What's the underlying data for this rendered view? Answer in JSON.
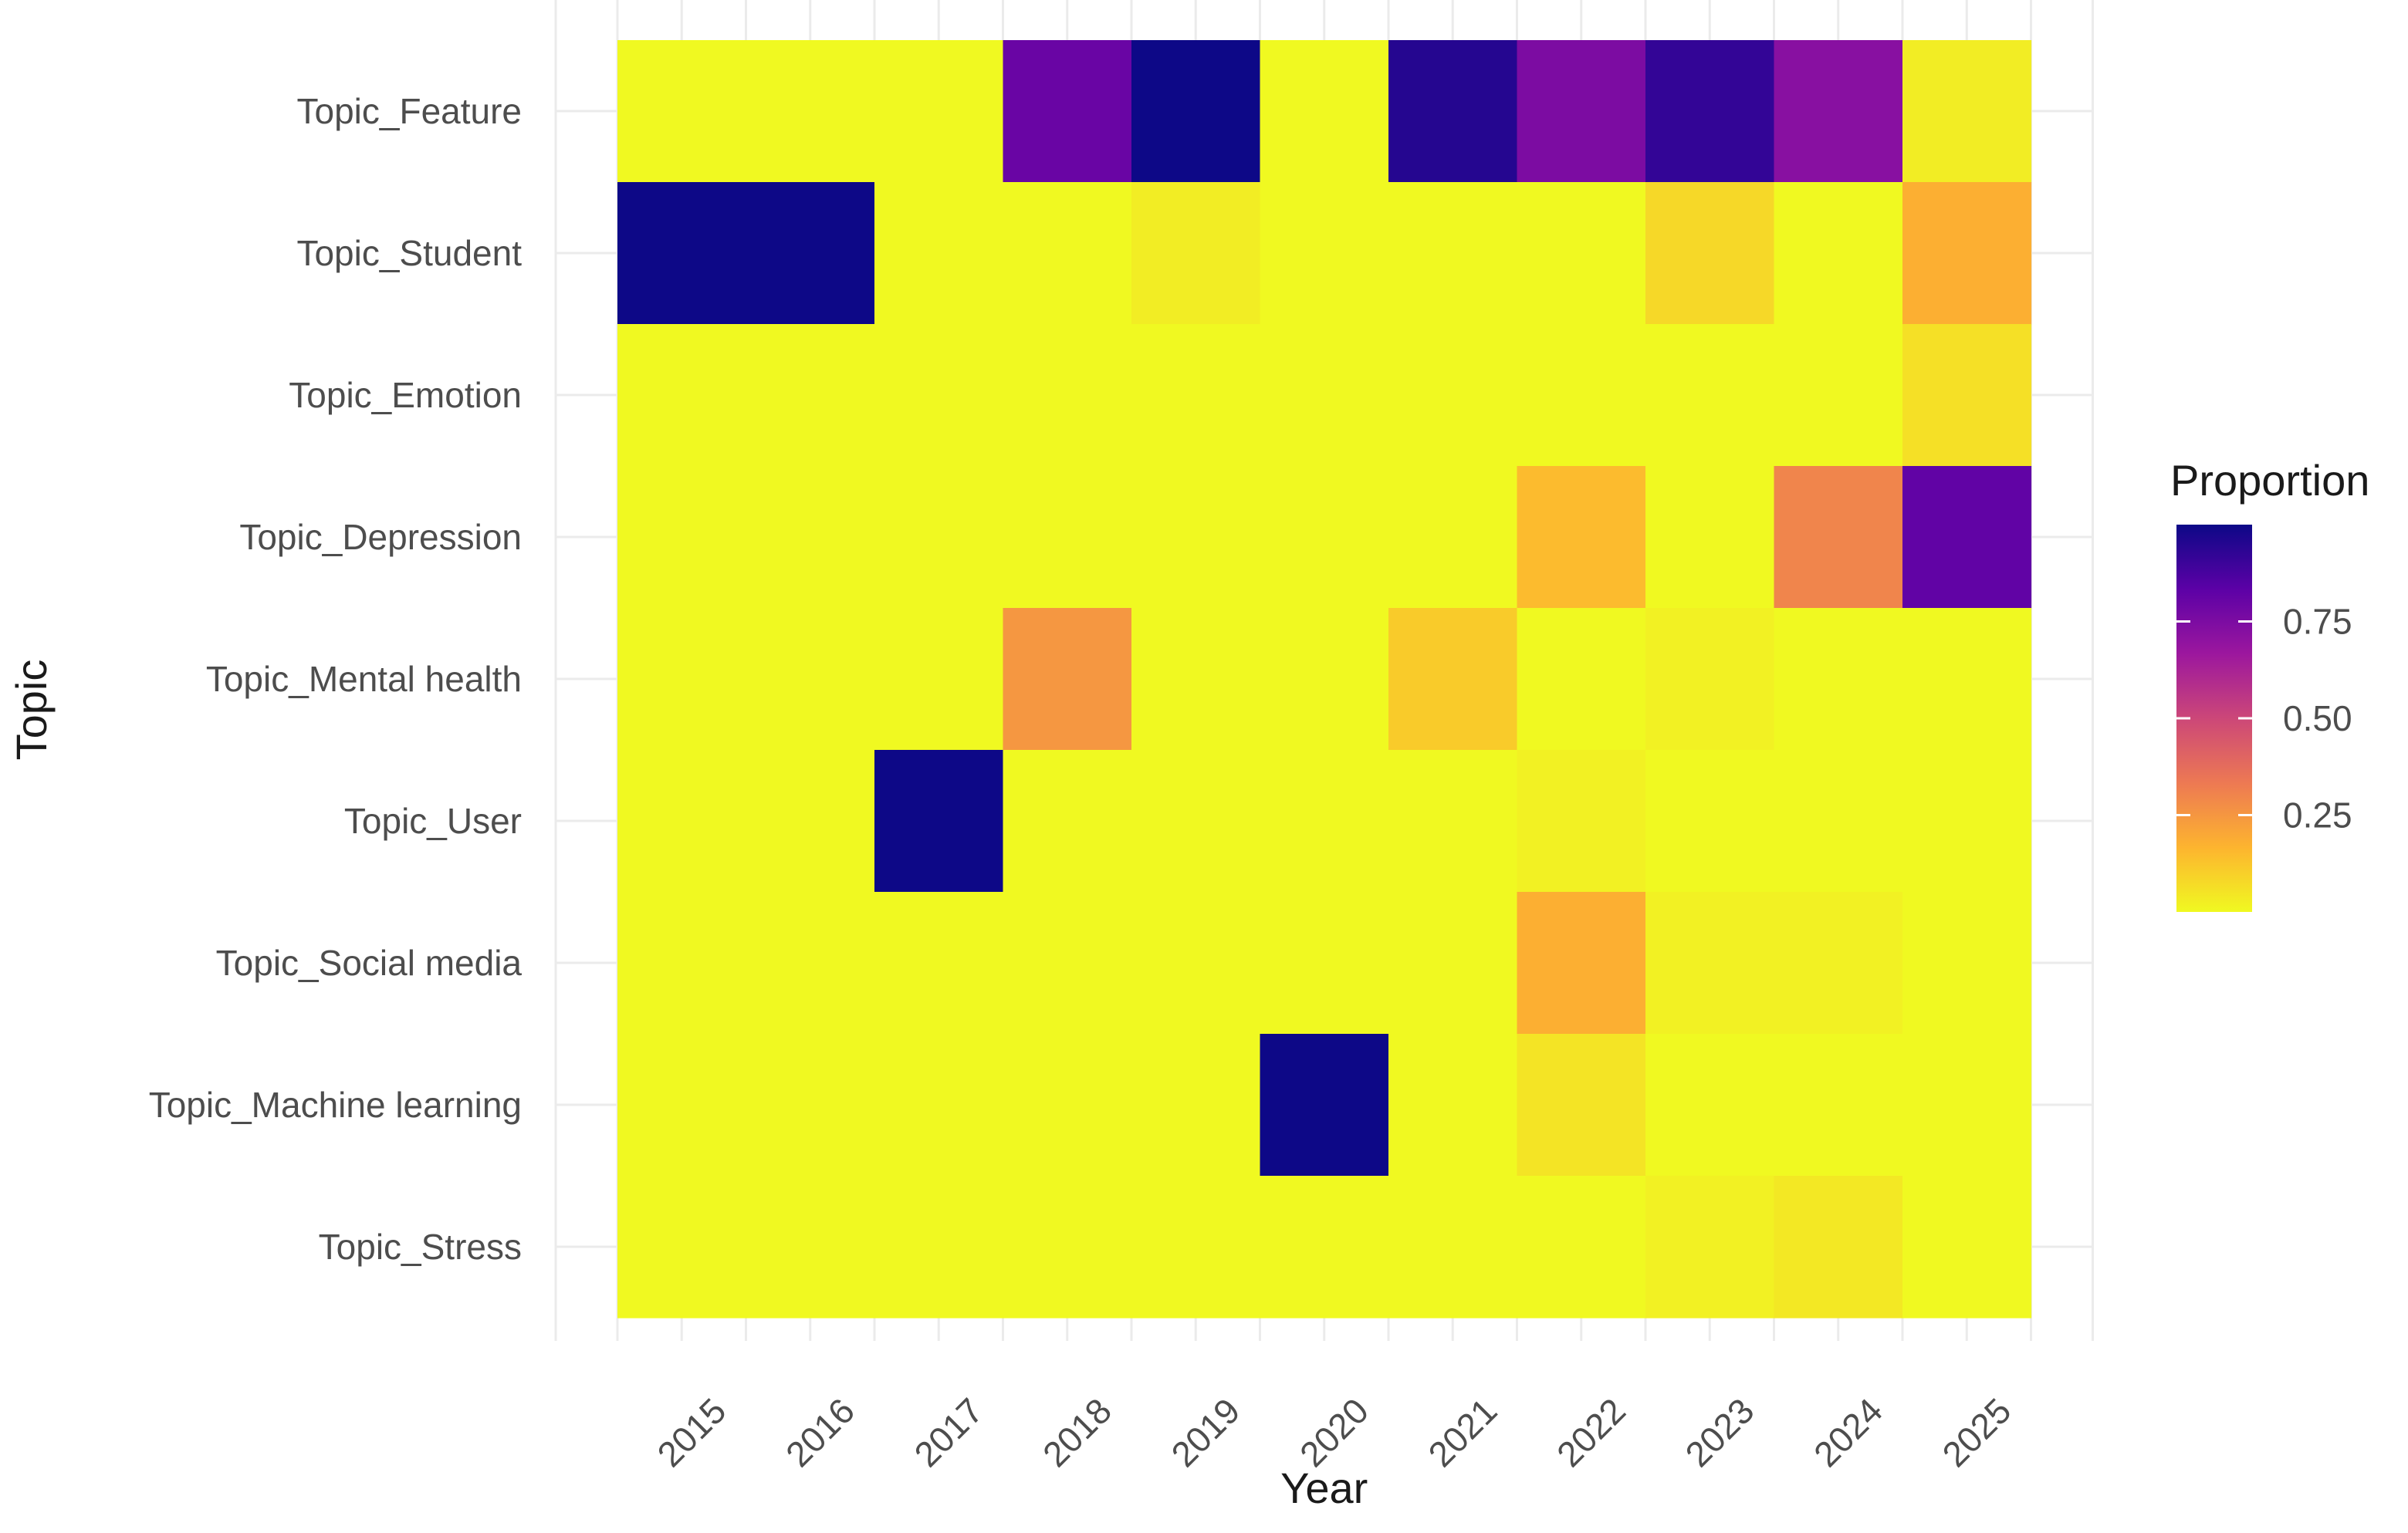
{
  "chart_data": {
    "type": "heatmap",
    "title": "",
    "xlabel": "Year",
    "ylabel": "Topic",
    "x_categories": [
      "2015",
      "2016",
      "2017",
      "2018",
      "2019",
      "2020",
      "2021",
      "2022",
      "2023",
      "2024",
      "2025"
    ],
    "y_categories": [
      "Topic_Feature",
      "Topic_Student",
      "Topic_Emotion",
      "Topic_Depression",
      "Topic_Mental health",
      "Topic_User",
      "Topic_Social media",
      "Topic_Machine learning",
      "Topic_Stress"
    ],
    "values": [
      [
        0,
        0,
        0,
        0.8,
        1.0,
        0,
        0.95,
        0.75,
        0.92,
        0.72,
        0.03
      ],
      [
        1.0,
        1.0,
        0,
        0,
        0.03,
        0,
        0,
        0,
        0.08,
        0,
        0.18
      ],
      [
        0,
        0,
        0,
        0,
        0,
        0,
        0,
        0,
        0,
        0,
        0.06
      ],
      [
        0,
        0,
        0,
        0,
        0,
        0,
        0,
        0.15,
        0,
        0.3,
        0.82
      ],
      [
        0,
        0,
        0,
        0.25,
        0,
        0,
        0.11,
        0,
        0.02,
        0,
        0
      ],
      [
        0,
        0,
        1.0,
        0,
        0,
        0,
        0,
        0.02,
        0,
        0,
        0
      ],
      [
        0,
        0,
        0,
        0,
        0,
        0,
        0,
        0.18,
        0.02,
        0.02,
        0
      ],
      [
        0,
        0,
        0,
        0,
        0,
        1.0,
        0,
        0.05,
        0,
        0,
        0
      ],
      [
        0,
        0,
        0,
        0,
        0,
        0,
        0,
        0,
        0.02,
        0.04,
        0
      ]
    ],
    "legend": {
      "title": "Proportion",
      "placement": "right",
      "ticks": [
        "0.25",
        "0.50",
        "0.75"
      ],
      "tick_values": [
        0.25,
        0.5,
        0.75
      ],
      "range": [
        0,
        1
      ],
      "palette": "plasma",
      "colors": [
        "#f0f921",
        "#fdb42f",
        "#ed7953",
        "#cc4778",
        "#9c179e",
        "#5c01a6",
        "#0d0887"
      ]
    },
    "grid": true
  }
}
